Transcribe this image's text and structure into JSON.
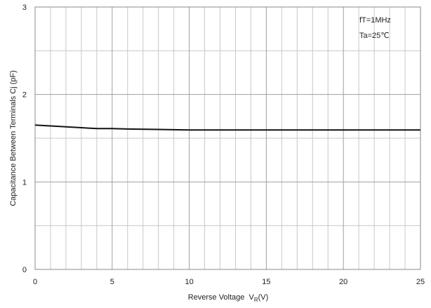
{
  "chart_data": {
    "type": "line",
    "title": "",
    "xlabel": "Reverse Voltage  V",
    "xlabel_sub": "R",
    "xlabel_suffix": "(V)",
    "ylabel": "Capacitance Between Terminals Cj (pF)",
    "xlim": [
      0,
      25
    ],
    "ylim": [
      0,
      3
    ],
    "x_major_ticks": [
      0,
      5,
      10,
      15,
      20,
      25
    ],
    "x_tick_labels": [
      "0",
      "5",
      "10",
      "15",
      "20",
      "25"
    ],
    "x_minor_step": 1,
    "y_major_ticks": [
      0,
      1,
      2,
      3
    ],
    "y_tick_labels": [
      "0",
      "1",
      "2",
      "3"
    ],
    "y_minor_step": 0.5,
    "grid": true,
    "annotations": [
      "fT=1MHz",
      "Ta=25℃"
    ],
    "series": [
      {
        "x": [
          0,
          1,
          2,
          3,
          4,
          5,
          6,
          8,
          10,
          12,
          15,
          20,
          25
        ],
        "values": [
          1.65,
          1.64,
          1.63,
          1.62,
          1.61,
          1.61,
          1.605,
          1.6,
          1.595,
          1.595,
          1.595,
          1.595,
          1.595
        ],
        "color": "#111111"
      }
    ]
  }
}
